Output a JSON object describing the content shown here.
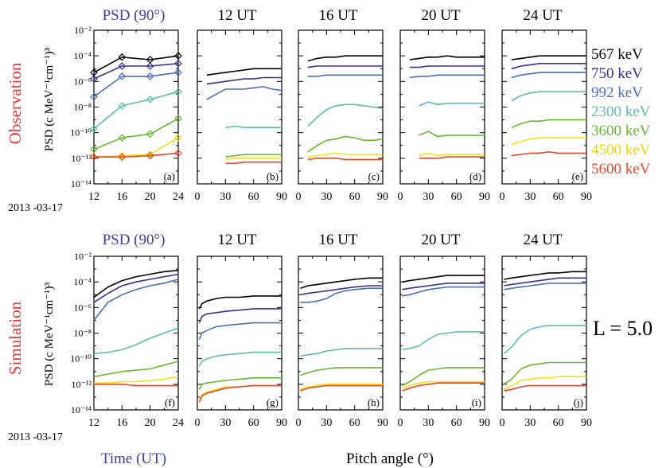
{
  "figure": {
    "rows": [
      {
        "label": "Observation",
        "ylabel": "PSD (c MeV⁻¹cm⁻¹)³"
      },
      {
        "label": "Simulation",
        "ylabel": "PSD (c MeV⁻¹cm⁻¹)³"
      }
    ],
    "first_col_title": "PSD (90°)",
    "col_titles": [
      "12 UT",
      "16 UT",
      "20 UT",
      "24 UT"
    ],
    "date_label": "2013 -03-17",
    "xlabel_time": "Time (UT)",
    "xlabel_pitch": "Pitch angle (°)",
    "l_label": "L = 5.0",
    "panel_letters": [
      "(a)",
      "(b)",
      "(c)",
      "(d)",
      "(e)",
      "(f)",
      "(g)",
      "(h)",
      "(i)",
      "(j)"
    ],
    "yticks": [
      "10⁻²",
      "10⁻⁴",
      "10⁻⁶",
      "10⁻⁸",
      "10⁻¹⁰",
      "10⁻¹²",
      "10⁻¹⁴"
    ],
    "time_ticks": [
      "12",
      "16",
      "20",
      "24"
    ],
    "pa_ticks": [
      "0",
      "30",
      "60",
      "90"
    ],
    "colors": {
      "red_text": "#e8323c",
      "blue_text": "#3e3e9c"
    }
  },
  "chart_data": {
    "type": "line",
    "yscale": "log",
    "ylim": [
      1e-14,
      0.01
    ],
    "series": [
      {
        "name": "567 keV",
        "color": "#000000"
      },
      {
        "name": "750 keV",
        "color": "#3b2e8c"
      },
      {
        "name": "992 keV",
        "color": "#4a6fb5"
      },
      {
        "name": "2300 keV",
        "color": "#5bbfa8"
      },
      {
        "name": "3600 keV",
        "color": "#66b82e"
      },
      {
        "name": "4500 keV",
        "color": "#f2e21a"
      },
      {
        "name": "5600 keV",
        "color": "#e8472a"
      }
    ],
    "time_panels": {
      "xlim": [
        12,
        24
      ],
      "observation": {
        "x": [
          12,
          16,
          20,
          24
        ],
        "y": [
          [
            -5.3,
            -4.1,
            -4.3,
            -4.0
          ],
          [
            -5.8,
            -4.8,
            -4.8,
            -4.6
          ],
          [
            -7.2,
            -5.6,
            -5.6,
            -5.3
          ],
          [
            -9.7,
            -7.9,
            -7.4,
            -6.8
          ],
          [
            -11.3,
            -10.4,
            -10.1,
            -8.9
          ],
          [
            -11.9,
            -11.8,
            -11.7,
            -10.4
          ],
          [
            -11.9,
            -11.9,
            -11.8,
            -11.6
          ]
        ]
      },
      "simulation": {
        "x": [
          12,
          14,
          16,
          18,
          20,
          22,
          24
        ],
        "y": [
          [
            -5.2,
            -4.4,
            -3.9,
            -3.6,
            -3.4,
            -3.2,
            -3.1
          ],
          [
            -5.6,
            -4.9,
            -4.3,
            -4.0,
            -3.8,
            -3.6,
            -3.4
          ],
          [
            -7.0,
            -5.6,
            -5.0,
            -4.6,
            -4.3,
            -4.1,
            -3.8
          ],
          [
            -9.6,
            -9.5,
            -9.3,
            -8.9,
            -8.4,
            -8.0,
            -7.6
          ],
          [
            -11.4,
            -11.2,
            -11.0,
            -10.9,
            -10.8,
            -10.5,
            -10.2
          ],
          [
            -11.9,
            -11.9,
            -11.8,
            -11.8,
            -11.7,
            -11.6,
            -11.4
          ],
          [
            -12.0,
            -12.0,
            -12.0,
            -12.1,
            -12.1,
            -12.1,
            -12.1
          ]
        ]
      }
    },
    "pitch_panels": {
      "xlim": [
        0,
        90
      ],
      "observation": [
        {
          "title": "12 UT",
          "x": [
            10,
            20,
            30,
            40,
            50,
            60,
            70,
            80,
            90
          ],
          "y": [
            [
              -5.5,
              -5.4,
              -5.3,
              -5.2,
              -5.1,
              -5.0,
              -5.0,
              -5.0,
              -5.0
            ],
            [
              -6.2,
              -6.1,
              -6.0,
              -5.9,
              -5.8,
              -5.8,
              -5.7,
              -5.7,
              -5.7
            ],
            [
              -7.4,
              -7.0,
              -6.6,
              -6.6,
              -6.6,
              -6.5,
              -6.4,
              -6.6,
              -6.7
            ],
            [
              null,
              null,
              -9.6,
              -9.5,
              -9.6,
              -9.6,
              -9.6,
              -9.6,
              -9.6
            ],
            [
              null,
              null,
              -11.9,
              -11.8,
              -11.7,
              -11.7,
              -11.7,
              -11.7,
              -11.7
            ],
            [
              null,
              null,
              -12.1,
              -12.0,
              -12.0,
              -12.0,
              -12.0,
              -12.0,
              -12.0
            ],
            [
              null,
              null,
              -12.4,
              -12.4,
              -12.3,
              -12.3,
              -12.3,
              -12.3,
              -12.3
            ]
          ]
        },
        {
          "title": "16 UT",
          "x": [
            10,
            20,
            30,
            40,
            50,
            60,
            70,
            80,
            90
          ],
          "y": [
            [
              -4.4,
              -4.2,
              -4.1,
              -4.1,
              -4.0,
              -4.0,
              -4.0,
              -4.0,
              -4.0
            ],
            [
              -4.9,
              -4.8,
              -4.8,
              -4.8,
              -4.8,
              -4.8,
              -4.8,
              -4.8,
              -4.8
            ],
            [
              -5.6,
              -5.6,
              -5.5,
              -5.5,
              -5.5,
              -5.5,
              -5.5,
              -5.5,
              -5.5
            ],
            [
              -9.5,
              -8.8,
              -8.2,
              -7.9,
              -7.8,
              -7.8,
              -7.9,
              -8.0,
              -8.1
            ],
            [
              -11.5,
              -11.0,
              -10.6,
              -10.5,
              -10.3,
              -10.4,
              -10.6,
              -10.6,
              -10.5
            ],
            [
              -11.9,
              -11.8,
              -11.7,
              -11.6,
              -11.7,
              -11.7,
              -11.7,
              -11.7,
              -11.7
            ],
            [
              -12.1,
              -12.0,
              -12.0,
              -12.0,
              -12.1,
              -12.1,
              -12.1,
              -12.1,
              -12.1
            ]
          ]
        },
        {
          "title": "20 UT",
          "x": [
            10,
            20,
            30,
            40,
            50,
            60,
            70,
            80,
            90
          ],
          "y": [
            [
              -4.3,
              -4.2,
              -4.1,
              -4.1,
              -4.0,
              -4.1,
              -4.1,
              -4.1,
              -4.1
            ],
            [
              -4.9,
              -4.9,
              -4.8,
              -4.8,
              -4.8,
              -4.8,
              -4.8,
              -4.8,
              -4.8
            ],
            [
              -5.7,
              -5.6,
              -5.6,
              -5.5,
              -5.5,
              -5.5,
              -5.5,
              -5.5,
              -5.5
            ],
            [
              null,
              -7.9,
              -7.6,
              -7.8,
              -7.7,
              -7.7,
              -7.7,
              -7.7,
              -7.7
            ],
            [
              null,
              -10.2,
              -9.9,
              -10.3,
              -10.2,
              -10.2,
              -10.2,
              -10.2,
              -10.2
            ],
            [
              null,
              -11.8,
              -11.6,
              -11.8,
              -11.7,
              -11.7,
              -11.7,
              -11.7,
              -11.7
            ],
            [
              null,
              -12.0,
              -12.0,
              -12.0,
              -11.9,
              -11.9,
              -11.9,
              -11.9,
              -11.9
            ]
          ]
        },
        {
          "title": "24 UT",
          "x": [
            10,
            20,
            30,
            40,
            50,
            60,
            70,
            80,
            90
          ],
          "y": [
            [
              -4.3,
              -4.2,
              -4.1,
              -4.0,
              -4.0,
              -4.0,
              -4.0,
              -4.0,
              -4.0
            ],
            [
              -5.0,
              -4.8,
              -4.7,
              -4.6,
              -4.6,
              -4.6,
              -4.6,
              -4.6,
              -4.6
            ],
            [
              -5.7,
              -5.5,
              -5.4,
              -5.3,
              -5.3,
              -5.3,
              -5.3,
              -5.3,
              -5.3
            ],
            [
              -7.5,
              -7.1,
              -6.9,
              -6.8,
              -6.8,
              -6.8,
              -6.8,
              -6.8,
              -6.8
            ],
            [
              -9.6,
              -9.3,
              -9.1,
              -9.1,
              -9.0,
              -9.0,
              -9.0,
              -9.0,
              -9.0
            ],
            [
              -10.9,
              -10.7,
              -10.5,
              -10.4,
              -10.4,
              -10.4,
              -10.4,
              -10.4,
              -10.4
            ],
            [
              -11.8,
              -11.7,
              -11.6,
              -11.6,
              -11.5,
              -11.6,
              -11.6,
              -11.6,
              -11.6
            ]
          ]
        }
      ],
      "simulation": [
        {
          "title": "12 UT",
          "x": [
            2,
            5,
            10,
            20,
            30,
            45,
            60,
            75,
            90
          ],
          "y": [
            [
              -6.1,
              -5.7,
              -5.5,
              -5.3,
              -5.2,
              -5.2,
              -5.1,
              -5.1,
              -5.1
            ],
            [
              -7.2,
              -6.7,
              -6.5,
              -6.4,
              -6.3,
              -6.2,
              -6.1,
              -6.1,
              -6.1
            ],
            [
              -8.5,
              -8.0,
              -7.8,
              -7.5,
              -7.4,
              -7.3,
              -7.2,
              -7.2,
              -7.2
            ],
            [
              -10.6,
              -10.2,
              -10.0,
              -9.8,
              -9.7,
              -9.6,
              -9.5,
              -9.5,
              -9.5
            ],
            [
              -12.4,
              -12.0,
              -11.9,
              -11.8,
              -11.7,
              -11.6,
              -11.5,
              -11.5,
              -11.5
            ],
            [
              -13.2,
              -12.8,
              -12.6,
              -12.4,
              -12.2,
              -12.2,
              -12.1,
              -12.1,
              -12.1
            ],
            [
              -13.4,
              -12.9,
              -12.7,
              -12.5,
              -12.3,
              -12.2,
              -12.1,
              -12.1,
              -12.1
            ]
          ]
        },
        {
          "title": "16 UT",
          "x": [
            2,
            10,
            20,
            30,
            40,
            50,
            60,
            75,
            90
          ],
          "y": [
            [
              -4.5,
              -4.3,
              -4.2,
              -4.1,
              -4.0,
              -3.9,
              -3.8,
              -3.7,
              -3.7
            ],
            [
              -5.0,
              -4.9,
              -4.8,
              -4.7,
              -4.6,
              -4.5,
              -4.4,
              -4.3,
              -4.3
            ],
            [
              -5.6,
              -5.6,
              -5.5,
              -5.3,
              -4.9,
              -4.7,
              -4.6,
              -4.5,
              -4.5
            ],
            [
              -9.8,
              -9.7,
              -9.6,
              -9.4,
              -9.3,
              -9.2,
              -9.2,
              -9.2,
              -9.2
            ],
            [
              -11.3,
              -11.1,
              -10.9,
              -10.8,
              -10.7,
              -10.7,
              -10.7,
              -10.7,
              -10.7
            ],
            [
              -12.4,
              -12.2,
              -12.1,
              -12.0,
              -12.0,
              -12.0,
              -12.0,
              -12.0,
              -12.0
            ],
            [
              -12.5,
              -12.3,
              -12.2,
              -12.1,
              -12.1,
              -12.1,
              -12.1,
              -12.1,
              -12.1
            ]
          ]
        },
        {
          "title": "20 UT",
          "x": [
            2,
            10,
            20,
            30,
            40,
            50,
            60,
            75,
            90
          ],
          "y": [
            [
              -4.0,
              -3.9,
              -3.8,
              -3.7,
              -3.6,
              -3.5,
              -3.5,
              -3.5,
              -3.5
            ],
            [
              -4.6,
              -4.5,
              -4.4,
              -4.3,
              -4.2,
              -4.1,
              -4.1,
              -4.1,
              -4.1
            ],
            [
              -5.1,
              -5.0,
              -4.8,
              -4.6,
              -4.5,
              -4.4,
              -4.4,
              -4.4,
              -4.4
            ],
            [
              -9.3,
              -9.2,
              -9.0,
              -8.5,
              -8.1,
              -8.0,
              -7.9,
              -7.9,
              -7.9
            ],
            [
              -12.1,
              -11.8,
              -11.3,
              -10.9,
              -10.8,
              -10.7,
              -10.7,
              -10.7,
              -10.7
            ],
            [
              -12.3,
              -12.1,
              -11.9,
              -11.8,
              -11.8,
              -11.8,
              -11.8,
              -11.8,
              -11.8
            ],
            [
              -12.5,
              -12.3,
              -12.1,
              -12.0,
              -11.9,
              -11.9,
              -11.9,
              -11.9,
              -11.9
            ]
          ]
        },
        {
          "title": "24 UT",
          "x": [
            2,
            10,
            20,
            30,
            40,
            50,
            60,
            75,
            90
          ],
          "y": [
            [
              -3.8,
              -3.7,
              -3.6,
              -3.5,
              -3.4,
              -3.3,
              -3.3,
              -3.2,
              -3.2
            ],
            [
              -4.3,
              -4.2,
              -4.1,
              -4.0,
              -3.9,
              -3.8,
              -3.7,
              -3.7,
              -3.7
            ],
            [
              -4.6,
              -4.5,
              -4.4,
              -4.3,
              -4.2,
              -4.1,
              -4.1,
              -4.1,
              -4.1
            ],
            [
              -9.6,
              -9.1,
              -8.2,
              -7.7,
              -7.5,
              -7.4,
              -7.4,
              -7.4,
              -7.4
            ],
            [
              -12.0,
              -11.6,
              -10.8,
              -10.5,
              -10.4,
              -10.3,
              -10.3,
              -10.3,
              -10.3
            ],
            [
              -12.4,
              -12.1,
              -11.7,
              -11.6,
              -11.5,
              -11.5,
              -11.4,
              -11.4,
              -11.4
            ],
            [
              -12.5,
              -12.4,
              -12.2,
              -12.1,
              -12.1,
              -12.1,
              -12.1,
              -12.1,
              -12.1
            ]
          ]
        }
      ]
    }
  }
}
